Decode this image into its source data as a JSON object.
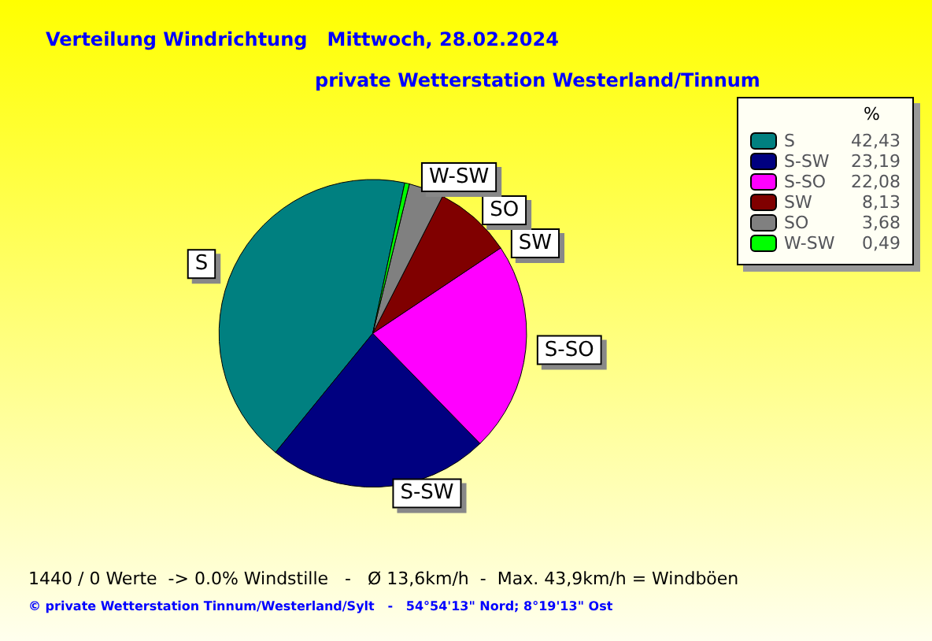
{
  "chart_data": {
    "type": "pie",
    "title": "Verteilung Windrichtung   Mittwoch, 28.02.2024",
    "subtitle": "private Wetterstation Westerland/Tinnum",
    "legend_title": "%",
    "legend": "top right",
    "categories": [
      "S",
      "S-SW",
      "S-SO",
      "SW",
      "SO",
      "W-SW"
    ],
    "values": [
      42.43,
      23.19,
      22.08,
      8.13,
      3.68,
      0.49
    ],
    "value_labels": [
      "42,43",
      "23,19",
      "22,08",
      "8,13",
      "3,68",
      "0,49"
    ],
    "colors": [
      "#008080",
      "#000080",
      "#ff00ff",
      "#800000",
      "#808080",
      "#00ff00"
    ],
    "annotations": [
      "1440 / 0 Werte  -> 0.0% Windstille   -   Ø 13,6km/h  -  Max. 43,9km/h = Windböen",
      "© private Wetterstation Tinnum/Westerland/Sylt   -   54°54'13\" Nord; 8°19'13\" Ost"
    ]
  }
}
